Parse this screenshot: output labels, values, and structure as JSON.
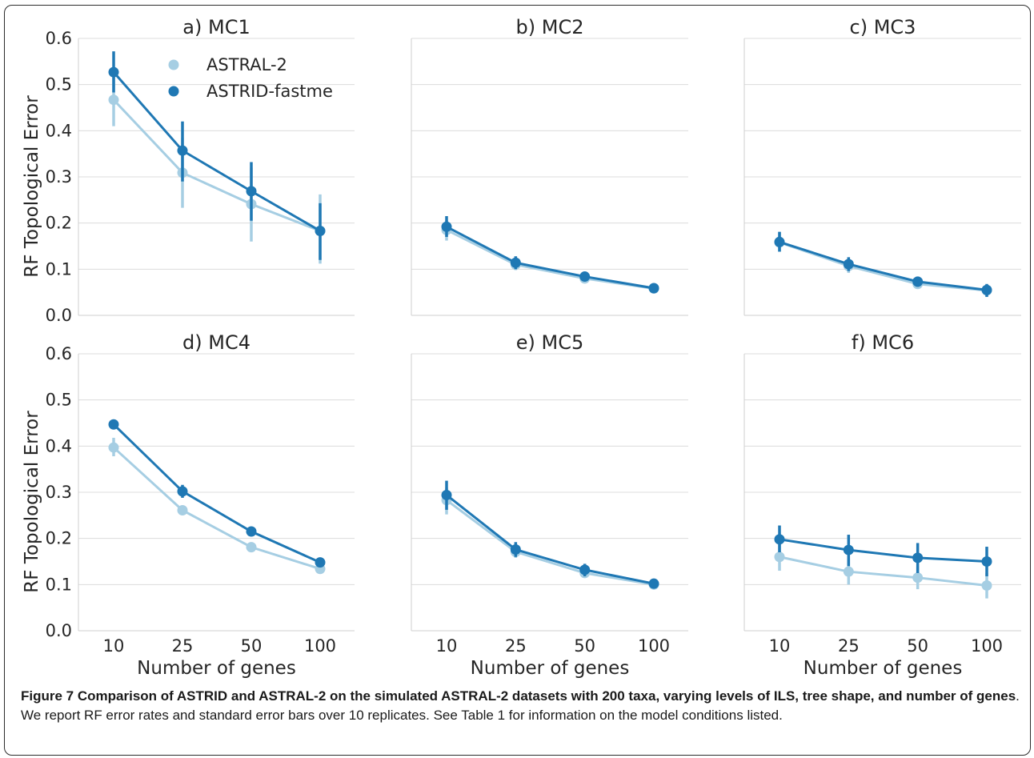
{
  "caption": {
    "label": "Figure 7",
    "title": "Comparison of ASTRID and ASTRAL-2 on the simulated ASTRAL-2 datasets with 200 taxa, varying levels of ILS, tree shape, and number of genes",
    "body": ". We report RF error rates and standard error bars over 10 replicates. See Table 1 for information on the model conditions listed."
  },
  "colors": {
    "ASTRAL-2": "#a6cee3",
    "ASTRID-fastme": "#1f78b4"
  },
  "chart_data": [
    {
      "type": "line",
      "title": "a) MC1",
      "xlabel": "",
      "ylabel": "RF Topological Error",
      "categories": [
        "10",
        "25",
        "50",
        "100"
      ],
      "ylim": [
        0,
        0.6
      ],
      "yticks": [
        "0.0",
        "0.1",
        "0.2",
        "0.3",
        "0.4",
        "0.5",
        "0.6"
      ],
      "legend": "top-left",
      "series": [
        {
          "name": "ASTRAL-2",
          "values": [
            0.467,
            0.309,
            0.241,
            0.183
          ],
          "err_low": [
            0.41,
            0.233,
            0.16,
            0.112
          ],
          "err_high": [
            0.524,
            0.385,
            0.32,
            0.262
          ]
        },
        {
          "name": "ASTRID-fastme",
          "values": [
            0.527,
            0.357,
            0.269,
            0.183
          ],
          "err_low": [
            0.483,
            0.29,
            0.205,
            0.12
          ],
          "err_high": [
            0.572,
            0.42,
            0.332,
            0.243
          ]
        }
      ]
    },
    {
      "type": "line",
      "title": "b) MC2",
      "xlabel": "",
      "ylabel": "",
      "categories": [
        "10",
        "25",
        "50",
        "100"
      ],
      "ylim": [
        0,
        0.6
      ],
      "series": [
        {
          "values": [
            0.185,
            0.11,
            0.08,
            0.058
          ],
          "err_low": [
            0.162,
            0.098,
            0.07,
            0.052
          ],
          "err_high": [
            0.206,
            0.122,
            0.09,
            0.064
          ]
        },
        {
          "values": [
            0.192,
            0.114,
            0.084,
            0.059
          ],
          "err_low": [
            0.17,
            0.1,
            0.075,
            0.052
          ],
          "err_high": [
            0.215,
            0.128,
            0.094,
            0.066
          ]
        }
      ]
    },
    {
      "type": "line",
      "title": "c) MC3",
      "xlabel": "",
      "ylabel": "",
      "categories": [
        "10",
        "25",
        "50",
        "100"
      ],
      "ylim": [
        0,
        0.6
      ],
      "series": [
        {
          "values": [
            0.158,
            0.107,
            0.068,
            0.054
          ],
          "err_low": [
            0.138,
            0.092,
            0.058,
            0.042
          ],
          "err_high": [
            0.18,
            0.122,
            0.078,
            0.066
          ]
        },
        {
          "values": [
            0.159,
            0.111,
            0.073,
            0.055
          ],
          "err_low": [
            0.138,
            0.096,
            0.062,
            0.04
          ],
          "err_high": [
            0.181,
            0.126,
            0.084,
            0.068
          ]
        }
      ]
    },
    {
      "type": "line",
      "title": "d) MC4",
      "xlabel": "Number of genes",
      "ylabel": "RF Topological Error",
      "categories": [
        "10",
        "25",
        "50",
        "100"
      ],
      "ylim": [
        0,
        0.6
      ],
      "yticks": [
        "0.0",
        "0.1",
        "0.2",
        "0.3",
        "0.4",
        "0.5",
        "0.6"
      ],
      "series": [
        {
          "values": [
            0.397,
            0.261,
            0.181,
            0.134
          ],
          "err_low": [
            0.378,
            0.253,
            0.175,
            0.128
          ],
          "err_high": [
            0.418,
            0.27,
            0.188,
            0.14
          ]
        },
        {
          "values": [
            0.447,
            0.302,
            0.215,
            0.148
          ],
          "err_low": [
            0.437,
            0.288,
            0.205,
            0.141
          ],
          "err_high": [
            0.456,
            0.316,
            0.224,
            0.155
          ]
        }
      ]
    },
    {
      "type": "line",
      "title": "e) MC5",
      "xlabel": "Number of genes",
      "ylabel": "",
      "categories": [
        "10",
        "25",
        "50",
        "100"
      ],
      "ylim": [
        0,
        0.6
      ],
      "series": [
        {
          "values": [
            0.283,
            0.171,
            0.125,
            0.1
          ],
          "err_low": [
            0.252,
            0.158,
            0.115,
            0.092
          ],
          "err_high": [
            0.31,
            0.184,
            0.135,
            0.108
          ]
        },
        {
          "values": [
            0.294,
            0.176,
            0.132,
            0.102
          ],
          "err_low": [
            0.262,
            0.16,
            0.118,
            0.092
          ],
          "err_high": [
            0.325,
            0.192,
            0.145,
            0.112
          ]
        }
      ]
    },
    {
      "type": "line",
      "title": "f) MC6",
      "xlabel": "Number of genes",
      "ylabel": "",
      "categories": [
        "10",
        "25",
        "50",
        "100"
      ],
      "ylim": [
        0,
        0.6
      ],
      "series": [
        {
          "values": [
            0.16,
            0.128,
            0.115,
            0.098
          ],
          "err_low": [
            0.13,
            0.1,
            0.09,
            0.07
          ],
          "err_high": [
            0.19,
            0.155,
            0.14,
            0.125
          ]
        },
        {
          "values": [
            0.198,
            0.175,
            0.158,
            0.15
          ],
          "err_low": [
            0.17,
            0.14,
            0.125,
            0.118
          ],
          "err_high": [
            0.228,
            0.208,
            0.19,
            0.182
          ]
        }
      ]
    }
  ]
}
